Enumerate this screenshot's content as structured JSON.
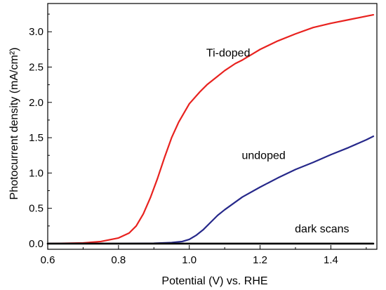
{
  "chart_data": {
    "type": "line",
    "xlabel": "Potential (V) vs. RHE",
    "ylabel": "Photocurrent density (mA/cm²)",
    "xlim": [
      0.6,
      1.53
    ],
    "ylim": [
      -0.08,
      3.4
    ],
    "xticks": [
      "0.6",
      "0.8",
      "1.0",
      "1.2",
      "1.4"
    ],
    "yticks": [
      "0.0",
      "0.5",
      "1.0",
      "1.5",
      "2.0",
      "2.5",
      "3.0"
    ],
    "grid": false,
    "series": [
      {
        "name": "Ti-doped",
        "color": "#e8221f",
        "x": [
          0.6,
          0.7,
          0.75,
          0.8,
          0.83,
          0.85,
          0.87,
          0.89,
          0.91,
          0.93,
          0.95,
          0.97,
          1.0,
          1.03,
          1.05,
          1.08,
          1.1,
          1.13,
          1.15,
          1.18,
          1.2,
          1.25,
          1.3,
          1.35,
          1.4,
          1.45,
          1.5,
          1.52
        ],
        "y": [
          0.0,
          0.01,
          0.03,
          0.08,
          0.15,
          0.25,
          0.42,
          0.65,
          0.92,
          1.22,
          1.5,
          1.72,
          1.98,
          2.15,
          2.25,
          2.37,
          2.45,
          2.55,
          2.6,
          2.69,
          2.75,
          2.87,
          2.97,
          3.06,
          3.12,
          3.17,
          3.22,
          3.24
        ]
      },
      {
        "name": "undoped",
        "color": "#26288a",
        "x": [
          0.6,
          0.8,
          0.9,
          0.95,
          0.98,
          1.0,
          1.02,
          1.04,
          1.06,
          1.08,
          1.1,
          1.15,
          1.2,
          1.25,
          1.3,
          1.35,
          1.4,
          1.45,
          1.5,
          1.52
        ],
        "y": [
          0.0,
          0.0,
          0.005,
          0.015,
          0.03,
          0.06,
          0.12,
          0.2,
          0.3,
          0.4,
          0.48,
          0.66,
          0.8,
          0.93,
          1.05,
          1.15,
          1.26,
          1.36,
          1.47,
          1.52
        ]
      },
      {
        "name": "dark scans",
        "color": "#000000",
        "x": [
          0.6,
          1.52
        ],
        "y": [
          0.0,
          0.0
        ]
      }
    ],
    "annotations": [
      {
        "text": "Ti-doped",
        "x": 1.11,
        "y": 2.65
      },
      {
        "text": "undoped",
        "x": 1.21,
        "y": 1.2
      },
      {
        "text": "dark scans",
        "x": 1.375,
        "y": 0.16
      }
    ]
  }
}
